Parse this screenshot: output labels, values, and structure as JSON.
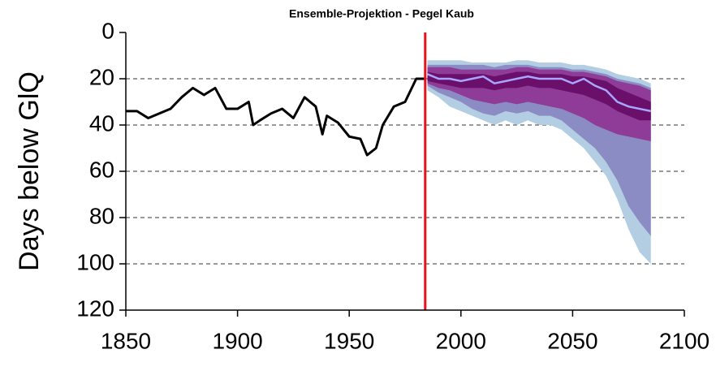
{
  "chart_data": {
    "type": "line",
    "title": "Ensemble-Projektion - Pegel Kaub",
    "y_label": "Days below GlQ",
    "xlim": [
      1850,
      2100
    ],
    "xticks": [
      1850,
      1900,
      1950,
      2000,
      2050,
      2100
    ],
    "ylim": [
      0,
      120
    ],
    "yticks": [
      0,
      20,
      40,
      60,
      80,
      100,
      120
    ],
    "y_inverted": true,
    "grid": true,
    "vline": {
      "value": 1984,
      "color": "#e8141c"
    },
    "historical": {
      "color": "#000000",
      "x": [
        1850,
        1855,
        1860,
        1865,
        1870,
        1875,
        1880,
        1885,
        1890,
        1895,
        1900,
        1905,
        1907,
        1910,
        1915,
        1920,
        1925,
        1930,
        1935,
        1938,
        1940,
        1945,
        1950,
        1955,
        1958,
        1962,
        1965,
        1970,
        1975,
        1980,
        1984
      ],
      "values": [
        34,
        34,
        37,
        35,
        33,
        28,
        24,
        27,
        24,
        33,
        33,
        30,
        40,
        38,
        35,
        33,
        37,
        28,
        32,
        44,
        36,
        39,
        45,
        46,
        53,
        50,
        40,
        32,
        30,
        20,
        20
      ]
    },
    "projection_x": [
      1985,
      1990,
      1995,
      2000,
      2005,
      2010,
      2015,
      2020,
      2025,
      2030,
      2035,
      2040,
      2045,
      2050,
      2055,
      2060,
      2065,
      2070,
      2075,
      2080,
      2085
    ],
    "bands": [
      {
        "color": "#b3cde3",
        "low": [
          12,
          12,
          12,
          12,
          13,
          13,
          13,
          13,
          12,
          12,
          13,
          13,
          13,
          14,
          14,
          15,
          16,
          18,
          19,
          20,
          22
        ],
        "high": [
          25,
          28,
          32,
          34,
          36,
          38,
          40,
          38,
          40,
          38,
          40,
          40,
          42,
          46,
          50,
          56,
          62,
          72,
          85,
          95,
          100
        ]
      },
      {
        "color": "#8c8cc4",
        "low": [
          14,
          14,
          14,
          14,
          14,
          14,
          15,
          14,
          14,
          14,
          15,
          15,
          15,
          16,
          16,
          17,
          18,
          20,
          21,
          22,
          24
        ],
        "high": [
          23,
          26,
          28,
          30,
          33,
          35,
          36,
          34,
          35,
          34,
          36,
          36,
          38,
          42,
          46,
          50,
          56,
          64,
          75,
          82,
          88
        ]
      },
      {
        "color": "#8e3c97",
        "low": [
          15,
          15,
          15,
          16,
          16,
          16,
          16,
          16,
          15,
          15,
          16,
          16,
          16,
          17,
          17,
          18,
          19,
          21,
          22,
          23,
          25
        ],
        "high": [
          22,
          24,
          25,
          27,
          29,
          30,
          31,
          30,
          31,
          30,
          31,
          32,
          33,
          35,
          37,
          40,
          42,
          44,
          45,
          46,
          47
        ]
      },
      {
        "color": "#6a0f6a",
        "low": [
          17,
          18,
          18,
          18,
          18,
          18,
          19,
          18,
          17,
          17,
          18,
          18,
          18,
          19,
          19,
          20,
          21,
          24,
          26,
          28,
          30
        ],
        "high": [
          21,
          22,
          23,
          24,
          24,
          24,
          25,
          24,
          24,
          23,
          24,
          24,
          25,
          26,
          27,
          29,
          31,
          34,
          36,
          38,
          38
        ]
      }
    ],
    "median": {
      "color": "#a9a6ff",
      "values": [
        18,
        20,
        20,
        21,
        20,
        19,
        22,
        21,
        20,
        19,
        20,
        20,
        20,
        22,
        20,
        23,
        25,
        30,
        32,
        33,
        34
      ]
    }
  }
}
